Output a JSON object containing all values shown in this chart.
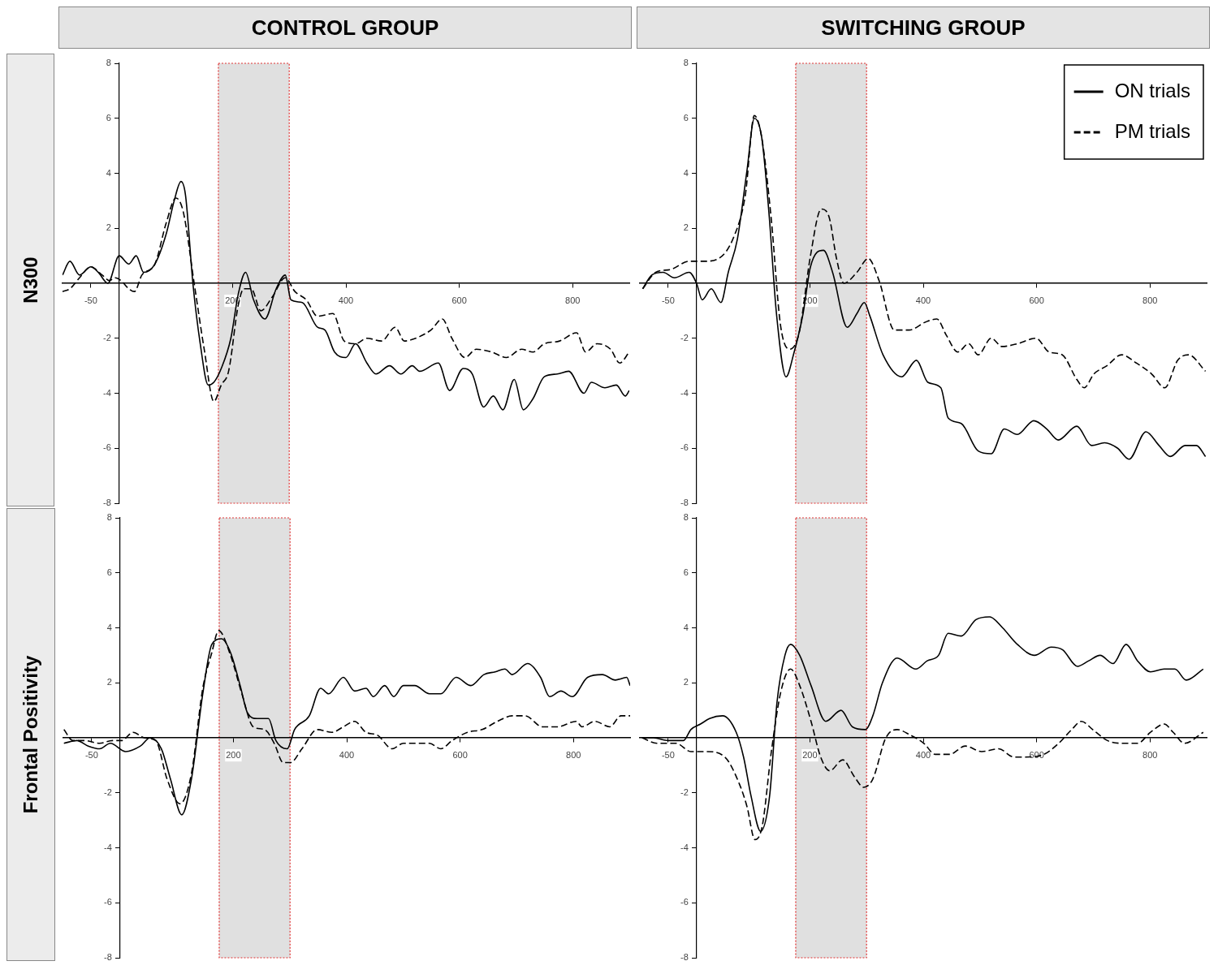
{
  "chart_data": [
    {
      "type": "line",
      "title": "CONTROL GROUP",
      "ylabel": "N300",
      "xlim": [
        -100,
        900
      ],
      "ylim": [
        -8,
        8
      ],
      "xticks": [
        -50,
        200,
        400,
        600,
        800
      ],
      "yticks": [
        -8,
        -6,
        -4,
        -2,
        2,
        4,
        6,
        8
      ],
      "grid": false,
      "bands": [
        {
          "axis": "x",
          "from": 175,
          "to": 300,
          "color": "#e0e0e0"
        }
      ],
      "series": [
        {
          "color": "#000000",
          "line_style": "solid",
          "x": [
            -100,
            -87,
            -70,
            -50,
            -37,
            -20,
            0,
            17,
            30,
            43,
            63,
            83,
            97,
            109,
            117,
            130,
            143,
            157,
            167,
            180,
            197,
            210,
            223,
            237,
            257,
            277,
            293,
            303,
            323,
            350,
            363,
            380,
            400,
            417,
            437,
            453,
            477,
            497,
            517,
            530,
            563,
            583,
            607,
            623,
            643,
            660,
            677,
            697,
            713,
            730,
            750,
            773,
            793,
            820,
            833,
            857,
            877,
            893,
            900
          ],
          "values": [
            0.3,
            0.8,
            0.3,
            0.6,
            0.4,
            0.0,
            1.0,
            0.7,
            1.0,
            0.4,
            0.7,
            1.8,
            3.0,
            3.7,
            3.2,
            0.0,
            -2.2,
            -3.7,
            -3.6,
            -3.1,
            -2.0,
            -0.4,
            0.4,
            -0.6,
            -1.3,
            -0.2,
            0.3,
            -0.6,
            -0.7,
            -1.6,
            -1.7,
            -2.5,
            -2.7,
            -2.2,
            -2.9,
            -3.3,
            -3.0,
            -3.3,
            -3.0,
            -3.2,
            -2.9,
            -3.9,
            -3.1,
            -3.3,
            -4.5,
            -4.1,
            -4.6,
            -3.5,
            -4.6,
            -4.2,
            -3.4,
            -3.3,
            -3.2,
            -4.0,
            -3.6,
            -3.8,
            -3.7,
            -4.1,
            -3.9
          ]
        },
        {
          "color": "#000000",
          "line_style": "dashed",
          "x": [
            -100,
            -87,
            -70,
            -50,
            -30,
            -17,
            -7,
            3,
            17,
            27,
            40,
            63,
            83,
            100,
            113,
            133,
            150,
            167,
            180,
            193,
            210,
            220,
            233,
            250,
            270,
            293,
            310,
            330,
            350,
            377,
            397,
            417,
            437,
            463,
            487,
            503,
            523,
            550,
            570,
            587,
            610,
            630,
            657,
            683,
            710,
            730,
            750,
            777,
            807,
            823,
            843,
            867,
            883,
            900
          ],
          "values": [
            -0.3,
            -0.2,
            0.2,
            0.6,
            0.3,
            0.1,
            0.2,
            0.1,
            -0.2,
            -0.3,
            0.3,
            0.7,
            2.2,
            3.1,
            2.6,
            -0.1,
            -2.4,
            -4.3,
            -3.7,
            -3.2,
            -0.8,
            -0.2,
            -0.2,
            -1.0,
            -0.5,
            0.2,
            -0.3,
            -0.6,
            -1.2,
            -1.1,
            -2.1,
            -2.2,
            -2.0,
            -2.1,
            -1.6,
            -2.1,
            -2.0,
            -1.7,
            -1.3,
            -2.0,
            -2.7,
            -2.4,
            -2.5,
            -2.7,
            -2.4,
            -2.5,
            -2.2,
            -2.1,
            -1.8,
            -2.5,
            -2.2,
            -2.4,
            -2.9,
            -2.5
          ]
        }
      ]
    },
    {
      "type": "line",
      "title": "SWITCHING GROUP",
      "xlim": [
        -100,
        900
      ],
      "ylim": [
        -8,
        8
      ],
      "xticks": [
        -50,
        200,
        400,
        600,
        800
      ],
      "yticks": [
        -8,
        -6,
        -4,
        -2,
        2,
        4,
        6,
        8
      ],
      "grid": false,
      "legend": "top right",
      "bands": [
        {
          "axis": "x",
          "from": 175,
          "to": 300,
          "color": "#e0e0e0"
        }
      ],
      "series": [
        {
          "name": "ON trials",
          "color": "#000000",
          "line_style": "solid",
          "x": [
            -95,
            -79,
            -59,
            -39,
            -13,
            0,
            10,
            26,
            43,
            56,
            72,
            89,
            102,
            115,
            128,
            141,
            158,
            171,
            188,
            201,
            224,
            240,
            266,
            283,
            296,
            306,
            329,
            362,
            388,
            408,
            431,
            444,
            467,
            497,
            520,
            543,
            566,
            595,
            618,
            638,
            671,
            697,
            720,
            743,
            763,
            793,
            816,
            836,
            862,
            882,
            898
          ],
          "values": [
            -0.2,
            0.3,
            0.4,
            0.2,
            0.4,
            0.0,
            -0.6,
            -0.2,
            -0.7,
            0.4,
            1.6,
            4.1,
            6.0,
            5.3,
            2.5,
            -1.1,
            -3.4,
            -2.6,
            -1.1,
            0.6,
            1.2,
            0.4,
            -1.6,
            -1.1,
            -0.7,
            -1.2,
            -2.6,
            -3.4,
            -2.8,
            -3.6,
            -3.8,
            -4.9,
            -5.1,
            -6.1,
            -6.2,
            -5.3,
            -5.5,
            -5.0,
            -5.3,
            -5.7,
            -5.2,
            -5.9,
            -5.8,
            -6.0,
            -6.4,
            -5.4,
            -5.9,
            -6.3,
            -5.9,
            -5.9,
            -6.3
          ]
        },
        {
          "name": "PM trials",
          "color": "#000000",
          "line_style": "dashed",
          "x": [
            -95,
            -72,
            -46,
            -13,
            13,
            39,
            66,
            86,
            102,
            115,
            132,
            148,
            164,
            181,
            201,
            220,
            234,
            247,
            260,
            283,
            303,
            322,
            349,
            375,
            405,
            424,
            441,
            461,
            480,
            497,
            520,
            539,
            566,
            599,
            622,
            645,
            671,
            684,
            701,
            724,
            750,
            776,
            803,
            826,
            849,
            868,
            898
          ],
          "values": [
            -0.2,
            0.4,
            0.5,
            0.8,
            0.8,
            0.9,
            1.7,
            3.2,
            6.1,
            5.3,
            2.3,
            -1.5,
            -2.4,
            -1.8,
            1.0,
            2.7,
            2.4,
            0.9,
            0.0,
            0.4,
            0.9,
            0.1,
            -1.7,
            -1.7,
            -1.4,
            -1.3,
            -1.9,
            -2.5,
            -2.2,
            -2.6,
            -2.0,
            -2.3,
            -2.2,
            -2.0,
            -2.5,
            -2.6,
            -3.5,
            -3.8,
            -3.3,
            -3.0,
            -2.6,
            -2.9,
            -3.3,
            -3.8,
            -2.8,
            -2.6,
            -3.2
          ]
        }
      ]
    },
    {
      "type": "line",
      "ylabel": "Frontal Positivity",
      "xlim": [
        -100,
        900
      ],
      "ylim": [
        -8,
        8
      ],
      "xticks": [
        -50,
        200,
        400,
        600,
        800
      ],
      "yticks": [
        -8,
        -6,
        -4,
        -2,
        2,
        4,
        6,
        8
      ],
      "grid": false,
      "bands": [
        {
          "axis": "x",
          "from": 175,
          "to": 300,
          "color": "#e0e0e0"
        }
      ],
      "series": [
        {
          "color": "#000000",
          "line_style": "solid",
          "x": [
            -99,
            -76,
            -56,
            -36,
            -17,
            10,
            36,
            53,
            73,
            89,
            109,
            126,
            146,
            162,
            179,
            195,
            212,
            225,
            242,
            262,
            275,
            295,
            308,
            334,
            354,
            368,
            394,
            414,
            434,
            447,
            467,
            483,
            500,
            520,
            546,
            566,
            593,
            619,
            642,
            662,
            679,
            692,
            719,
            742,
            758,
            778,
            798,
            825,
            851,
            874,
            894,
            900
          ],
          "values": [
            -0.2,
            -0.1,
            -0.3,
            -0.4,
            -0.2,
            -0.5,
            -0.3,
            0.0,
            -0.4,
            -1.5,
            -2.8,
            -1.5,
            1.6,
            3.4,
            3.6,
            3.1,
            1.9,
            0.9,
            0.7,
            0.7,
            -0.1,
            -0.4,
            0.3,
            0.8,
            1.8,
            1.6,
            2.2,
            1.7,
            1.8,
            1.5,
            1.9,
            1.5,
            1.9,
            1.9,
            1.6,
            1.6,
            2.2,
            1.9,
            2.3,
            2.4,
            2.5,
            2.3,
            2.7,
            2.2,
            1.5,
            1.7,
            1.5,
            2.2,
            2.3,
            2.1,
            2.2,
            1.9
          ]
        },
        {
          "color": "#000000",
          "line_style": "dashed",
          "x": [
            -99,
            -83,
            -63,
            -36,
            -13,
            3,
            23,
            43,
            63,
            83,
            106,
            126,
            146,
            162,
            174,
            195,
            215,
            235,
            255,
            272,
            288,
            301,
            321,
            348,
            374,
            394,
            414,
            434,
            454,
            480,
            500,
            526,
            546,
            566,
            586,
            613,
            639,
            666,
            692,
            715,
            745,
            772,
            805,
            815,
            838,
            864,
            884,
            900
          ],
          "values": [
            0.3,
            -0.1,
            -0.1,
            -0.2,
            -0.1,
            -0.1,
            0.2,
            0.0,
            -0.1,
            -1.5,
            -2.4,
            -1.3,
            1.8,
            3.1,
            3.9,
            3.0,
            1.6,
            0.4,
            0.3,
            -0.2,
            -0.9,
            -0.9,
            -0.4,
            0.3,
            0.2,
            0.4,
            0.6,
            0.2,
            0.1,
            -0.4,
            -0.2,
            -0.2,
            -0.2,
            -0.4,
            -0.1,
            0.2,
            0.3,
            0.6,
            0.8,
            0.8,
            0.4,
            0.4,
            0.6,
            0.4,
            0.6,
            0.4,
            0.8,
            0.8
          ]
        }
      ]
    },
    {
      "type": "line",
      "xlim": [
        -100,
        900
      ],
      "ylim": [
        -8,
        8
      ],
      "xticks": [
        -50,
        200,
        400,
        600,
        800
      ],
      "yticks": [
        -8,
        -6,
        -4,
        -2,
        2,
        4,
        6,
        8
      ],
      "grid": false,
      "bands": [
        {
          "axis": "x",
          "from": 175,
          "to": 300,
          "color": "#e0e0e0"
        }
      ],
      "series": [
        {
          "color": "#000000",
          "line_style": "solid",
          "x": [
            -96,
            -76,
            -50,
            -23,
            -10,
            7,
            23,
            46,
            70,
            83,
            96,
            113,
            129,
            142,
            156,
            166,
            182,
            202,
            228,
            255,
            275,
            298,
            311,
            328,
            354,
            387,
            407,
            427,
            444,
            467,
            493,
            517,
            540,
            566,
            596,
            626,
            646,
            672,
            692,
            712,
            735,
            758,
            778,
            801,
            825,
            844,
            864,
            894
          ],
          "values": [
            0.0,
            0.0,
            -0.1,
            -0.1,
            0.3,
            0.5,
            0.7,
            0.8,
            0.2,
            -0.7,
            -2.1,
            -3.4,
            -2.1,
            1.3,
            3.0,
            3.4,
            3.0,
            1.9,
            0.6,
            1.0,
            0.4,
            0.3,
            0.8,
            2.0,
            2.9,
            2.5,
            2.8,
            3.0,
            3.8,
            3.7,
            4.3,
            4.4,
            4.0,
            3.4,
            3.0,
            3.3,
            3.2,
            2.6,
            2.8,
            3.0,
            2.7,
            3.4,
            2.8,
            2.4,
            2.5,
            2.5,
            2.1,
            2.5
          ]
        },
        {
          "color": "#000000",
          "line_style": "dashed",
          "x": [
            -96,
            -70,
            -36,
            -10,
            17,
            50,
            76,
            89,
            103,
            116,
            132,
            149,
            166,
            182,
            202,
            219,
            235,
            258,
            278,
            295,
            311,
            334,
            354,
            377,
            401,
            421,
            447,
            474,
            503,
            533,
            560,
            579,
            613,
            639,
            662,
            679,
            699,
            725,
            752,
            778,
            801,
            825,
            841,
            861,
            894
          ],
          "values": [
            0.0,
            -0.2,
            -0.2,
            -0.5,
            -0.5,
            -0.7,
            -1.7,
            -2.5,
            -3.7,
            -3.2,
            -0.5,
            1.7,
            2.5,
            1.9,
            0.6,
            -0.7,
            -1.2,
            -0.8,
            -1.4,
            -1.8,
            -1.5,
            0.0,
            0.3,
            0.1,
            -0.2,
            -0.6,
            -0.6,
            -0.3,
            -0.5,
            -0.4,
            -0.7,
            -0.7,
            -0.6,
            -0.2,
            0.3,
            0.6,
            0.3,
            -0.1,
            -0.2,
            -0.2,
            0.2,
            0.5,
            0.2,
            -0.2,
            0.2
          ]
        }
      ]
    }
  ]
}
